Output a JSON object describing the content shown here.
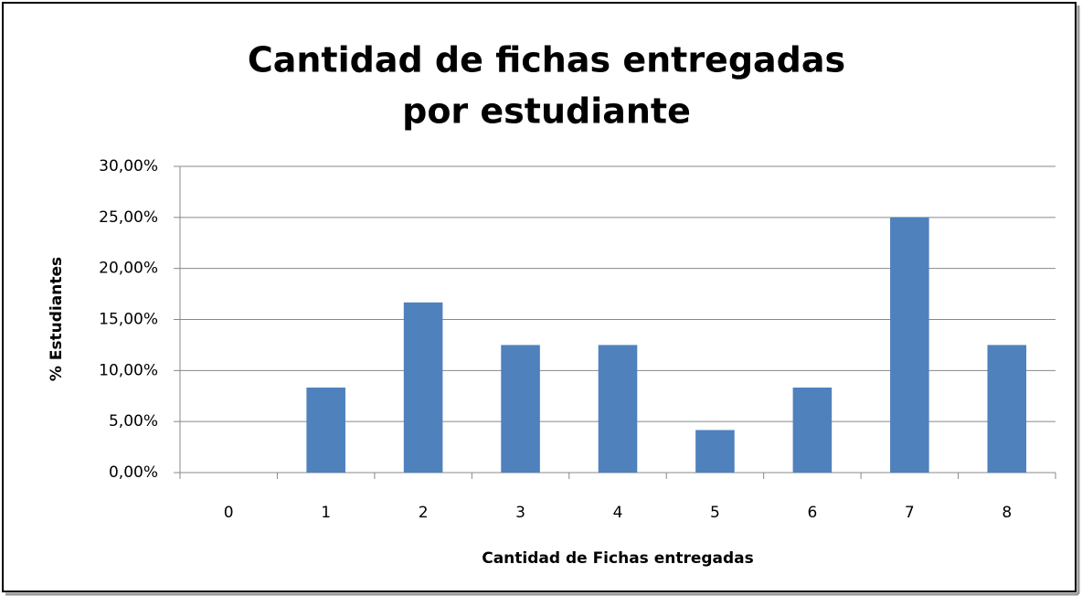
{
  "chart_data": {
    "type": "bar",
    "title": [
      "Cantidad de fichas entregadas",
      "por estudiante"
    ],
    "x_label": "Cantidad de Fichas entregadas",
    "y_label": "%  Estudiantes",
    "categories": [
      "0",
      "1",
      "2",
      "3",
      "4",
      "5",
      "6",
      "7",
      "8"
    ],
    "values": [
      0,
      8.33,
      16.67,
      12.5,
      12.5,
      4.17,
      8.33,
      25,
      12.5
    ],
    "color": "#4f81bd",
    "ylim": [
      0,
      30
    ],
    "yticks": [
      {
        "value": 0,
        "label": "0,00%"
      },
      {
        "value": 5,
        "label": "5,00%"
      },
      {
        "value": 10,
        "label": "10,00%"
      },
      {
        "value": 15,
        "label": "15,00%"
      },
      {
        "value": 20,
        "label": "20,00%"
      },
      {
        "value": 25,
        "label": "25,00%"
      },
      {
        "value": 30,
        "label": "30,00%"
      }
    ],
    "grid": true
  }
}
